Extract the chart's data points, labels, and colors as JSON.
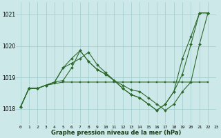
{
  "bg_color": "#cce8e8",
  "grid_color": "#a0cccc",
  "line_color": "#2d6a2d",
  "xlabel": "Graphe pression niveau de la mer (hPa)",
  "ylim": [
    1017.5,
    1021.4
  ],
  "xlim": [
    -0.5,
    23
  ],
  "yticks": [
    1018,
    1019,
    1020,
    1021
  ],
  "xticks": [
    0,
    1,
    2,
    3,
    4,
    5,
    6,
    7,
    8,
    9,
    10,
    11,
    12,
    13,
    14,
    15,
    16,
    17,
    18,
    19,
    20,
    21,
    22,
    23
  ],
  "s1_x": [
    0,
    1,
    2,
    3,
    4,
    5,
    6,
    7,
    8,
    9,
    10,
    11,
    12,
    13,
    14,
    15,
    16,
    17,
    18,
    19,
    20,
    21,
    22
  ],
  "s1_y": [
    1018.05,
    1018.65,
    1018.65,
    1018.75,
    1018.8,
    1018.85,
    1018.85,
    1018.85,
    1018.85,
    1018.85,
    1018.85,
    1018.85,
    1018.85,
    1018.85,
    1018.85,
    1018.85,
    1018.85,
    1018.85,
    1018.85,
    1018.85,
    1018.85,
    1018.85,
    1018.85
  ],
  "s2_x": [
    0,
    1,
    2,
    3,
    4,
    5,
    6,
    7,
    8,
    9,
    10,
    11,
    12,
    13,
    14,
    15,
    16,
    17,
    18,
    19,
    20,
    21,
    22
  ],
  "s2_y": [
    1018.05,
    1018.65,
    1018.65,
    1018.75,
    1018.85,
    1019.3,
    1019.45,
    1019.6,
    1019.8,
    1019.4,
    1019.15,
    1018.9,
    1018.75,
    1018.6,
    1018.55,
    1018.35,
    1018.15,
    1017.95,
    1018.15,
    1018.55,
    1018.85,
    1020.05,
    1021.05
  ],
  "s3_x": [
    0,
    1,
    2,
    3,
    4,
    5,
    6,
    7,
    8,
    9,
    10,
    11,
    12,
    13,
    14,
    15,
    16,
    17,
    18,
    19,
    20,
    21,
    22
  ],
  "s3_y": [
    1018.05,
    1018.65,
    1018.65,
    1018.75,
    1018.85,
    1019.3,
    1019.6,
    1019.85,
    1019.5,
    1019.25,
    1019.1,
    1018.9,
    1018.65,
    1018.45,
    1018.35,
    1018.15,
    1017.95,
    1018.15,
    1018.55,
    1019.1,
    1020.05,
    1021.05,
    1021.05
  ],
  "s4_x": [
    0,
    1,
    2,
    3,
    4,
    5,
    6,
    7,
    8,
    9,
    10,
    11,
    12,
    13,
    14,
    15,
    16,
    17,
    18,
    19,
    20,
    21,
    22
  ],
  "s4_y": [
    1018.05,
    1018.65,
    1018.65,
    1018.75,
    1018.85,
    1018.9,
    1019.3,
    1019.85,
    1019.5,
    1019.25,
    1019.1,
    1018.9,
    1018.65,
    1018.45,
    1018.35,
    1018.15,
    1017.95,
    1018.15,
    1018.55,
    1019.6,
    1020.3,
    1021.05,
    1021.05
  ]
}
